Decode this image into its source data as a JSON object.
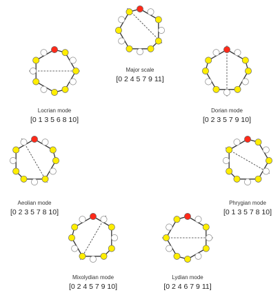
{
  "colors": {
    "tonic": "#ff2a1a",
    "active": "#ffee00",
    "inactive": "#ffffff",
    "stroke": "#333333"
  },
  "modes": [
    {
      "id": "major",
      "name": "Major scale",
      "set": "[0 2 4 5 7 9 11]",
      "notes": [
        0,
        2,
        4,
        5,
        7,
        9,
        11
      ],
      "axis": [
        11,
        4
      ]
    },
    {
      "id": "dorian",
      "name": "Dorian mode",
      "set": "[0 2 3 5 7 9 10]",
      "notes": [
        0,
        2,
        3,
        5,
        7,
        9,
        10
      ],
      "axis": [
        0,
        6
      ]
    },
    {
      "id": "phrygian",
      "name": "Phrygian mode",
      "set": "[0 1 3 5 7 8 10]",
      "notes": [
        0,
        1,
        3,
        5,
        7,
        8,
        10
      ],
      "axis": [
        10,
        4
      ]
    },
    {
      "id": "lydian",
      "name": "Lydian mode",
      "set": "[0 2 4 6 7 9 11]",
      "notes": [
        0,
        2,
        4,
        6,
        7,
        9,
        11
      ],
      "axis": [
        9,
        3
      ]
    },
    {
      "id": "mixolydian",
      "name": "Mixolydian mode",
      "set": "[0 2 4 5 7 9 10]",
      "notes": [
        0,
        2,
        4,
        5,
        7,
        9,
        10
      ],
      "axis": [
        1,
        7
      ]
    },
    {
      "id": "aeolian",
      "name": "Aeolian mode",
      "set": "[0 2 3 5 7 8 10]",
      "notes": [
        0,
        2,
        3,
        5,
        7,
        8,
        10
      ],
      "axis": [
        11,
        5
      ]
    },
    {
      "id": "locrian",
      "name": "Locrian mode",
      "set": "[0 1 3 5 6 8 10]",
      "notes": [
        0,
        1,
        3,
        5,
        6,
        8,
        10
      ],
      "axis": [
        9,
        3
      ]
    }
  ]
}
